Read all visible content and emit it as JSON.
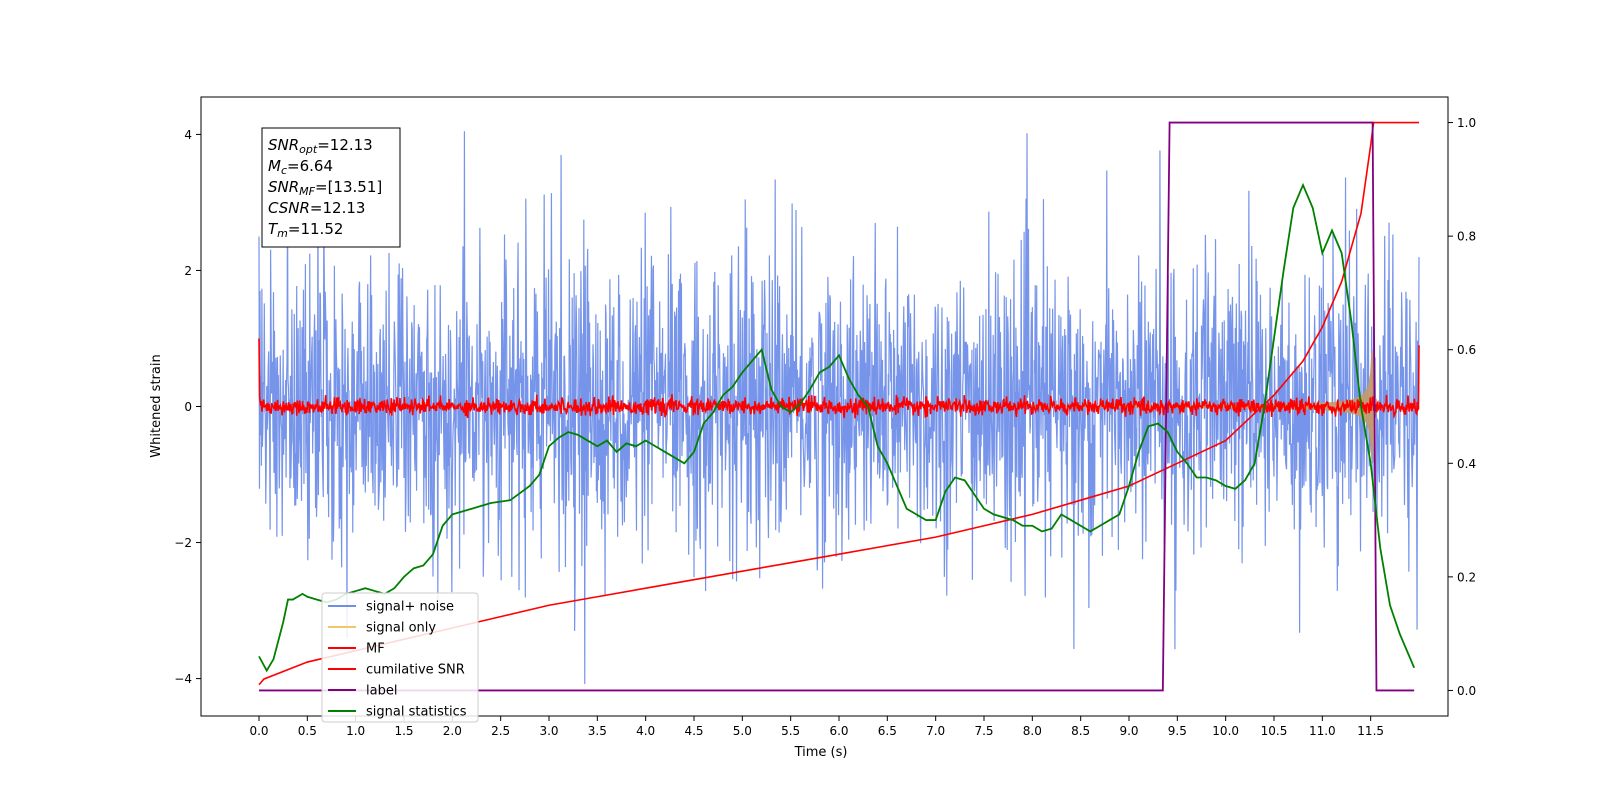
{
  "chart_data": {
    "type": "line",
    "xlabel": "Time (s)",
    "ylabel": "Whitened strain",
    "xlim": [
      -0.6,
      12.3
    ],
    "ylim": [
      -4.55,
      4.55
    ],
    "y2lim": [
      -0.045,
      1.045
    ],
    "x_ticks": [
      "0.0",
      "0.5",
      "1.0",
      "1.5",
      "2.0",
      "2.5",
      "3.0",
      "3.5",
      "4.0",
      "4.5",
      "5.0",
      "5.5",
      "6.0",
      "6.5",
      "7.0",
      "7.5",
      "8.0",
      "8.5",
      "9.0",
      "9.5",
      "10.0",
      "10.5",
      "11.0",
      "11.5"
    ],
    "y_ticks": [
      "4",
      "2",
      "0",
      "−2",
      "−4"
    ],
    "y2_ticks": [
      "1.0",
      "0.8",
      "0.6",
      "0.4",
      "0.2",
      "0.0"
    ],
    "annotation": {
      "lines": [
        {
          "main": "SNR",
          "sub": "opt",
          "value": "=12.13"
        },
        {
          "main": "M",
          "sub": "c",
          "value": "=6.64"
        },
        {
          "main": "SNR",
          "sub": "MF",
          "value": "=[13.51]"
        },
        {
          "main": "CSNR",
          "sub": "",
          "value": "=12.13"
        },
        {
          "main": "T",
          "sub": "m",
          "value": "=11.52"
        }
      ]
    },
    "legend": {
      "placement": "lower-left",
      "entries": [
        "signal+ noise",
        "signal only",
        "MF",
        "cumilative SNR",
        "label",
        "signal statistics"
      ]
    },
    "series": [
      {
        "name": "signal+ noise",
        "color": "#6f8ee8",
        "axis": "left",
        "t_range": [
          0,
          12
        ],
        "std": 1.05,
        "min": -4.1,
        "max": 4.1
      },
      {
        "name": "signal only",
        "color": "#c49a6c",
        "axis": "left",
        "t_range": [
          0,
          12
        ],
        "merger_time": 11.52,
        "peak_amplitude": 1.05
      },
      {
        "name": "MF",
        "color": "#ff0000",
        "axis": "left",
        "t_range": [
          0,
          12
        ],
        "std": 0.06,
        "start_value": 1.0,
        "end_value": 0.9
      },
      {
        "name": "cumilative SNR",
        "color": "#ff0000",
        "axis": "right",
        "x": [
          0.0,
          0.05,
          0.5,
          1.0,
          1.5,
          2.0,
          2.5,
          3.0,
          3.5,
          4.0,
          4.5,
          5.0,
          5.5,
          6.0,
          6.5,
          7.0,
          7.5,
          8.0,
          8.5,
          9.0,
          9.5,
          10.0,
          10.5,
          10.8,
          11.0,
          11.2,
          11.4,
          11.5,
          11.53,
          12.0
        ],
        "y": [
          0.01,
          0.02,
          0.05,
          0.07,
          0.09,
          0.11,
          0.13,
          0.15,
          0.165,
          0.18,
          0.195,
          0.21,
          0.225,
          0.24,
          0.255,
          0.27,
          0.29,
          0.31,
          0.335,
          0.36,
          0.4,
          0.44,
          0.52,
          0.58,
          0.64,
          0.72,
          0.84,
          0.96,
          1.0,
          1.0
        ]
      },
      {
        "name": "label",
        "color": "#800080",
        "axis": "right",
        "x": [
          0.0,
          9.35,
          9.42,
          11.52,
          11.56,
          11.95
        ],
        "y": [
          0.0,
          0.0,
          1.0,
          1.0,
          0.0,
          0.0
        ]
      },
      {
        "name": "signal statistics",
        "color": "#008000",
        "axis": "right",
        "x": [
          0.0,
          0.08,
          0.15,
          0.25,
          0.3,
          0.35,
          0.45,
          0.5,
          0.6,
          0.7,
          0.8,
          0.9,
          1.0,
          1.1,
          1.2,
          1.3,
          1.4,
          1.5,
          1.6,
          1.7,
          1.8,
          1.9,
          2.0,
          2.2,
          2.4,
          2.6,
          2.8,
          2.9,
          3.0,
          3.1,
          3.2,
          3.3,
          3.4,
          3.5,
          3.6,
          3.7,
          3.8,
          3.9,
          4.0,
          4.1,
          4.2,
          4.3,
          4.4,
          4.5,
          4.6,
          4.7,
          4.8,
          4.9,
          5.0,
          5.1,
          5.2,
          5.3,
          5.4,
          5.5,
          5.6,
          5.7,
          5.8,
          5.9,
          6.0,
          6.1,
          6.2,
          6.3,
          6.4,
          6.5,
          6.6,
          6.7,
          6.8,
          6.9,
          7.0,
          7.1,
          7.2,
          7.3,
          7.4,
          7.5,
          7.6,
          7.7,
          7.8,
          7.9,
          8.0,
          8.1,
          8.2,
          8.3,
          8.4,
          8.5,
          8.6,
          8.7,
          8.8,
          8.9,
          9.0,
          9.1,
          9.2,
          9.3,
          9.4,
          9.5,
          9.6,
          9.7,
          9.8,
          9.9,
          10.0,
          10.1,
          10.2,
          10.3,
          10.4,
          10.5,
          10.6,
          10.7,
          10.8,
          10.9,
          11.0,
          11.1,
          11.2,
          11.3,
          11.4,
          11.5,
          11.6,
          11.7,
          11.8,
          11.9,
          11.95
        ],
        "y": [
          0.06,
          0.035,
          0.055,
          0.12,
          0.16,
          0.16,
          0.17,
          0.165,
          0.16,
          0.155,
          0.16,
          0.17,
          0.175,
          0.18,
          0.175,
          0.17,
          0.18,
          0.2,
          0.215,
          0.22,
          0.24,
          0.29,
          0.31,
          0.32,
          0.33,
          0.335,
          0.36,
          0.38,
          0.43,
          0.445,
          0.455,
          0.45,
          0.44,
          0.43,
          0.44,
          0.42,
          0.435,
          0.43,
          0.44,
          0.43,
          0.42,
          0.41,
          0.4,
          0.42,
          0.47,
          0.49,
          0.52,
          0.535,
          0.56,
          0.58,
          0.6,
          0.53,
          0.5,
          0.49,
          0.505,
          0.53,
          0.56,
          0.57,
          0.59,
          0.55,
          0.52,
          0.5,
          0.43,
          0.4,
          0.36,
          0.32,
          0.31,
          0.3,
          0.3,
          0.35,
          0.375,
          0.37,
          0.345,
          0.32,
          0.31,
          0.305,
          0.3,
          0.29,
          0.29,
          0.28,
          0.285,
          0.31,
          0.3,
          0.29,
          0.28,
          0.29,
          0.3,
          0.31,
          0.36,
          0.42,
          0.465,
          0.47,
          0.455,
          0.42,
          0.4,
          0.375,
          0.375,
          0.37,
          0.36,
          0.355,
          0.37,
          0.4,
          0.5,
          0.62,
          0.74,
          0.85,
          0.89,
          0.85,
          0.77,
          0.81,
          0.77,
          0.65,
          0.5,
          0.4,
          0.25,
          0.15,
          0.1,
          0.06,
          0.04
        ]
      }
    ]
  }
}
